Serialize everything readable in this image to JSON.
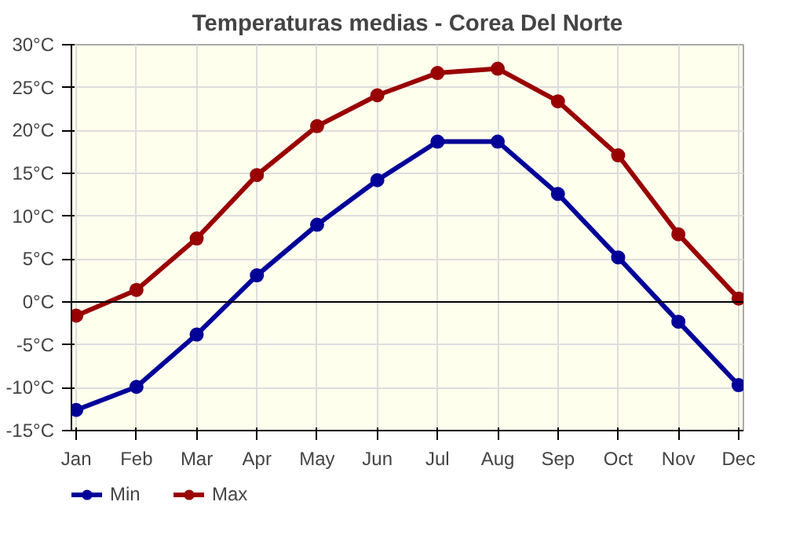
{
  "chart_data": {
    "type": "line",
    "title": "Temperaturas medias - Corea Del Norte",
    "categories": [
      "Jan",
      "Feb",
      "Mar",
      "Apr",
      "May",
      "Jun",
      "Jul",
      "Aug",
      "Sep",
      "Oct",
      "Nov",
      "Dec"
    ],
    "series": [
      {
        "name": "Min",
        "color": "#000099",
        "values": [
          -12.6,
          -9.9,
          -3.8,
          3.1,
          9.0,
          14.2,
          18.7,
          18.7,
          12.6,
          5.2,
          -2.3,
          -9.7
        ]
      },
      {
        "name": "Max",
        "color": "#990000",
        "values": [
          -1.6,
          1.4,
          7.4,
          14.8,
          20.5,
          24.1,
          26.7,
          27.2,
          23.4,
          17.1,
          7.9,
          0.4
        ]
      }
    ],
    "ylim": [
      -15,
      30
    ],
    "yticks": [
      {
        "value": -15,
        "label": "-15°C"
      },
      {
        "value": -10,
        "label": "-10°C"
      },
      {
        "value": -5,
        "label": "-5°C"
      },
      {
        "value": 0,
        "label": "0°C"
      },
      {
        "value": 5,
        "label": "5°C"
      },
      {
        "value": 10,
        "label": "10°C"
      },
      {
        "value": 15,
        "label": "15°C"
      },
      {
        "value": 20,
        "label": "20°C"
      },
      {
        "value": 25,
        "label": "25°C"
      },
      {
        "value": 30,
        "label": "30°C"
      }
    ],
    "ref_lines": [
      {
        "axis": "y",
        "value": 0,
        "color": "#000000"
      }
    ],
    "grid": true,
    "legend": "bottom left",
    "marker": "circle",
    "line_style": "solid"
  }
}
